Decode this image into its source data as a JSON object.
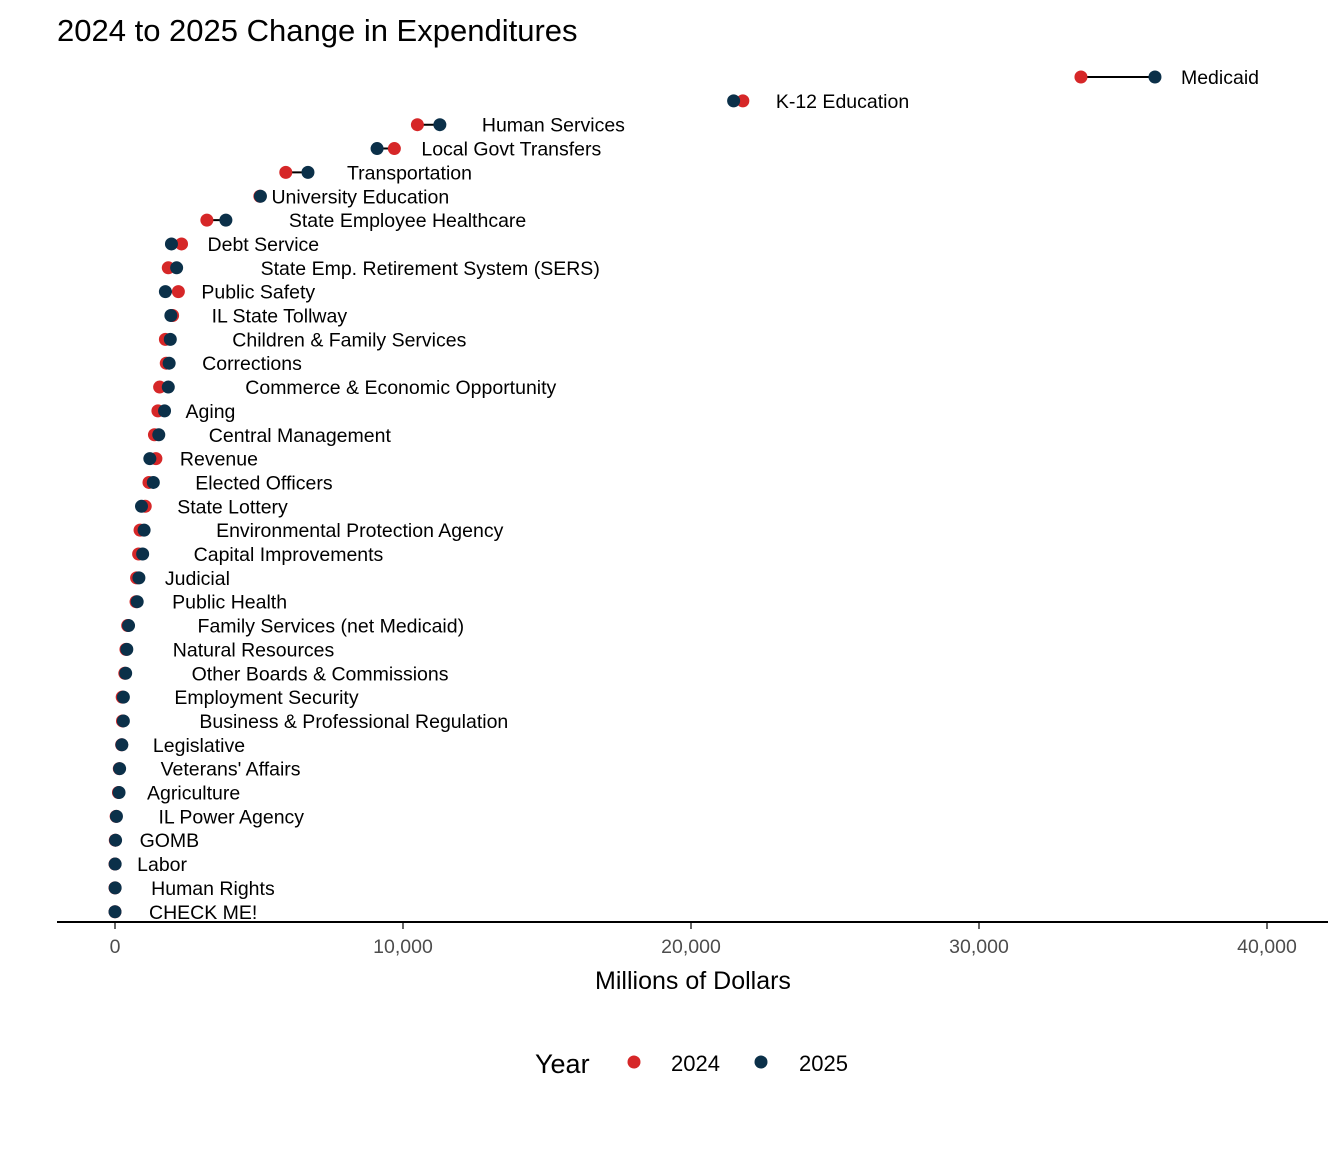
{
  "chart_data": {
    "type": "dumbbell",
    "title": "2024 to 2025 Change in Expenditures",
    "xlabel": "Millions of Dollars",
    "ylabel": "",
    "xlim": [
      -2000,
      42000
    ],
    "xticks": [
      0,
      10000,
      20000,
      30000,
      40000
    ],
    "xtick_labels": [
      "0",
      "10,000",
      "20,000",
      "30,000",
      "40,000"
    ],
    "grid": false,
    "legend": {
      "title": "Year",
      "placement": "bottom",
      "entries": [
        {
          "label": "2024",
          "color": "#d62728"
        },
        {
          "label": "2025",
          "color": "#0b3049"
        }
      ]
    },
    "series": [
      {
        "name": "2024",
        "color": "#d62728"
      },
      {
        "name": "2025",
        "color": "#0b3049"
      }
    ],
    "categories": [
      {
        "name": "Medicaid",
        "v2024": 33540,
        "v2025": 36110
      },
      {
        "name": "K-12 Education",
        "v2024": 21800,
        "v2025": 21480
      },
      {
        "name": "Human Services",
        "v2024": 10500,
        "v2025": 11280
      },
      {
        "name": "Local Govt Transfers",
        "v2024": 9700,
        "v2025": 9100
      },
      {
        "name": "Transportation",
        "v2024": 5930,
        "v2025": 6700
      },
      {
        "name": "University Education",
        "v2024": 5030,
        "v2025": 5050
      },
      {
        "name": "State Employee Healthcare",
        "v2024": 3190,
        "v2025": 3850
      },
      {
        "name": "Debt Service",
        "v2024": 2310,
        "v2025": 1960
      },
      {
        "name": "State Emp. Retirement System (SERS)",
        "v2024": 1850,
        "v2025": 2140
      },
      {
        "name": "Public Safety",
        "v2024": 2200,
        "v2025": 1750
      },
      {
        "name": "IL State Tollway",
        "v2024": 2000,
        "v2025": 1940
      },
      {
        "name": "Children & Family Services",
        "v2024": 1750,
        "v2025": 1920
      },
      {
        "name": "Corrections",
        "v2024": 1780,
        "v2025": 1880
      },
      {
        "name": "Commerce & Economic Opportunity",
        "v2024": 1550,
        "v2025": 1850
      },
      {
        "name": "Aging",
        "v2024": 1490,
        "v2025": 1720
      },
      {
        "name": "Central Management",
        "v2024": 1370,
        "v2025": 1520
      },
      {
        "name": "Revenue",
        "v2024": 1420,
        "v2025": 1210
      },
      {
        "name": "Elected Officers",
        "v2024": 1180,
        "v2025": 1330
      },
      {
        "name": "State Lottery",
        "v2024": 1050,
        "v2025": 920
      },
      {
        "name": "Environmental Protection Agency",
        "v2024": 870,
        "v2025": 1010
      },
      {
        "name": "Capital Improvements",
        "v2024": 820,
        "v2025": 960
      },
      {
        "name": "Judicial",
        "v2024": 750,
        "v2025": 830
      },
      {
        "name": "Public Health",
        "v2024": 730,
        "v2025": 770
      },
      {
        "name": "Family Services (net Medicaid)",
        "v2024": 440,
        "v2025": 470
      },
      {
        "name": "Natural Resources",
        "v2024": 380,
        "v2025": 410
      },
      {
        "name": "Other Boards & Commissions",
        "v2024": 340,
        "v2025": 370
      },
      {
        "name": "Employment Security",
        "v2024": 250,
        "v2025": 290
      },
      {
        "name": "Business & Professional Regulation",
        "v2024": 260,
        "v2025": 290
      },
      {
        "name": "Legislative",
        "v2024": 230,
        "v2025": 240
      },
      {
        "name": "Veterans' Affairs",
        "v2024": 150,
        "v2025": 160
      },
      {
        "name": "Agriculture",
        "v2024": 120,
        "v2025": 140
      },
      {
        "name": "IL Power Agency",
        "v2024": 40,
        "v2025": 50
      },
      {
        "name": "GOMB",
        "v2024": 10,
        "v2025": 20
      },
      {
        "name": "Labor",
        "v2024": 0,
        "v2025": 5
      },
      {
        "name": "Human Rights",
        "v2024": 0,
        "v2025": 5
      },
      {
        "name": "CHECK ME!",
        "v2024": 0,
        "v2025": 0
      }
    ]
  }
}
